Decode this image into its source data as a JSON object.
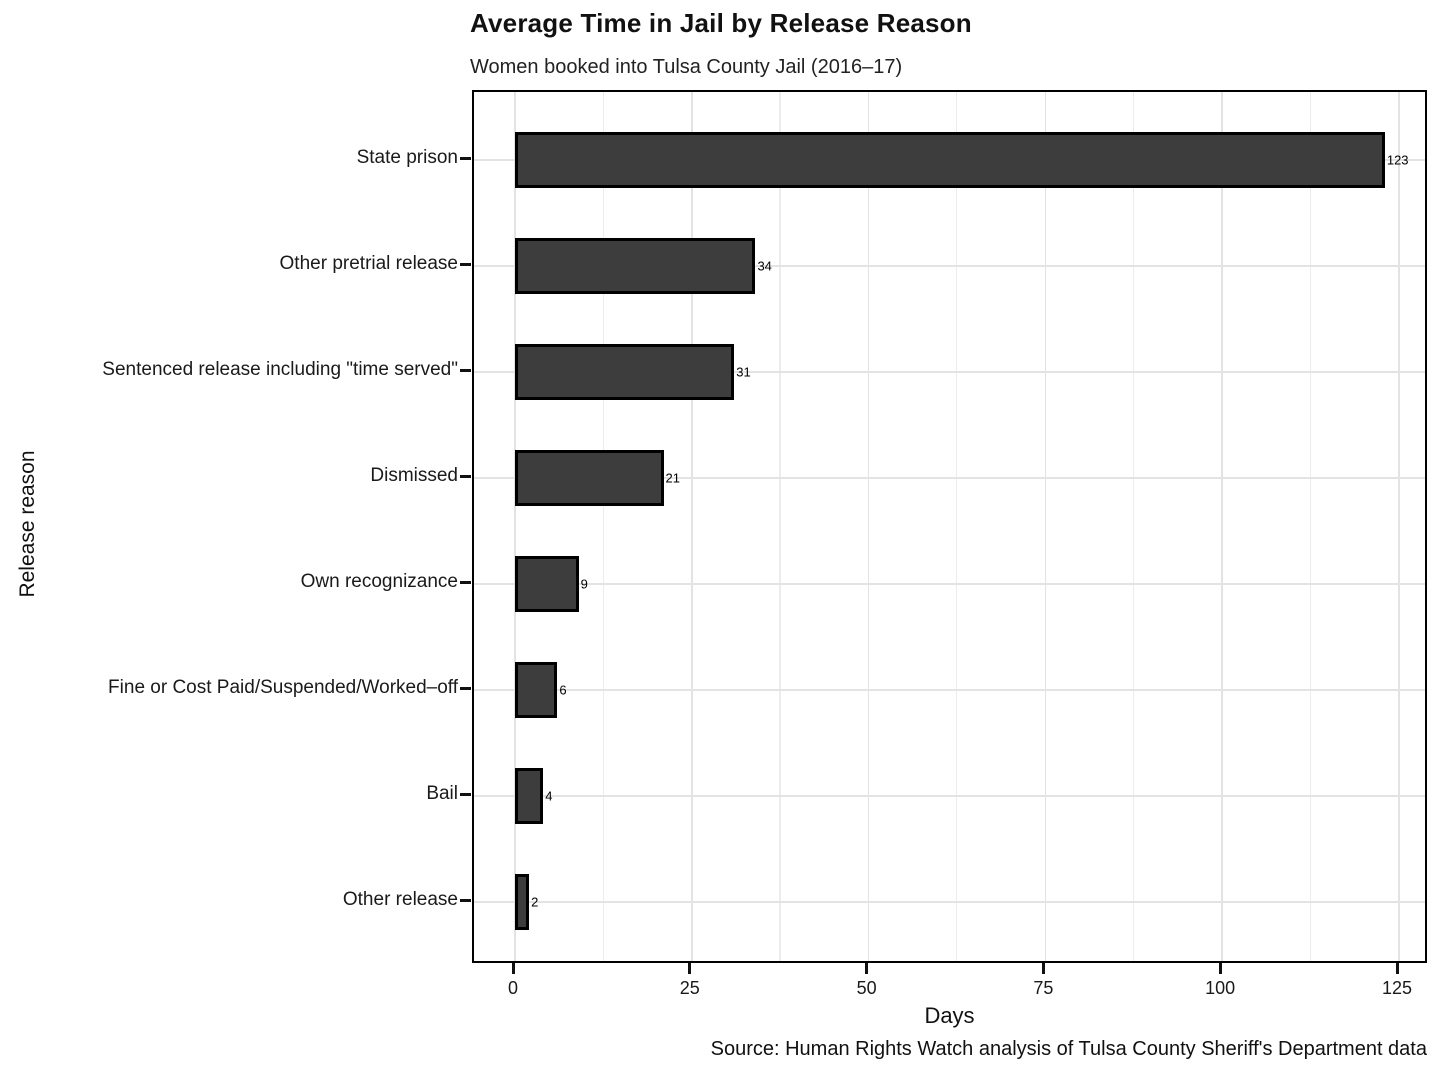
{
  "chart_data": {
    "type": "bar",
    "orientation": "horizontal",
    "title": "Average Time in Jail by Release Reason",
    "subtitle": "Women booked into Tulsa County Jail (2016–17)",
    "categories": [
      "State prison",
      "Other pretrial release",
      "Sentenced release including \"time served\"",
      "Dismissed",
      "Own recognizance",
      "Fine or Cost Paid/Suspended/Worked–off",
      "Bail",
      "Other release"
    ],
    "values": [
      123,
      34,
      31,
      21,
      9,
      6,
      4,
      2
    ],
    "bar_labels": [
      "123",
      "34",
      "31",
      "21",
      "9",
      "6",
      "4",
      "2"
    ],
    "xlabel": "Days",
    "ylabel": "Release reason",
    "xlim": [
      0,
      125
    ],
    "x_major_ticks": [
      0,
      25,
      50,
      75,
      100,
      125
    ],
    "x_minor_step": 12.5,
    "caption": "Source: Human Rights Watch analysis of Tulsa County Sheriff's Department data",
    "grid": true,
    "legend": "none",
    "colors": {
      "bar_fill": "#3d3d3d",
      "bar_border": "#000000",
      "grid": "#e3e3e3",
      "panel_border": "#000000",
      "text": "#1a1a1a"
    }
  }
}
